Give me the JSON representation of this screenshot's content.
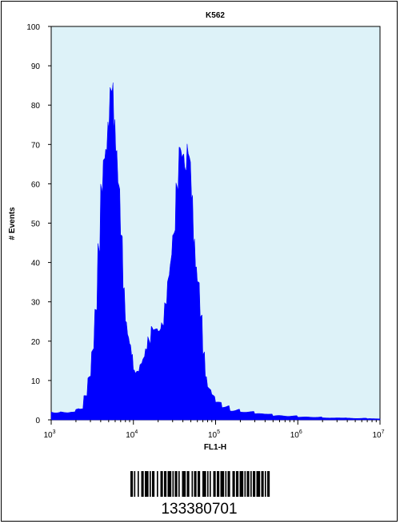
{
  "chart_data": {
    "type": "histogram",
    "title": "K562",
    "xlabel": "FL1-H",
    "ylabel": "# Events",
    "x_scale": "log",
    "xlim": [
      1000,
      10000000
    ],
    "ylim": [
      0,
      100
    ],
    "y_ticks": [
      "0",
      "10",
      "20",
      "30",
      "40",
      "50",
      "60",
      "70",
      "80",
      "90",
      "100"
    ],
    "x_tick_labels": [
      {
        "base": "10",
        "exp": "3"
      },
      {
        "base": "10",
        "exp": "4"
      },
      {
        "base": "10",
        "exp": "5"
      },
      {
        "base": "10",
        "exp": "6"
      },
      {
        "base": "10",
        "exp": "7"
      }
    ],
    "fill_color": "#0000ff",
    "plot_background": "#ddf2f8",
    "grid": false,
    "legend": "none",
    "series": [
      {
        "x": [
          1000,
          1300,
          1700,
          2000,
          2200,
          2500,
          2800,
          3100,
          3400,
          3700,
          4000,
          4300,
          4600,
          4900,
          5200,
          5500,
          5800,
          6100,
          6500,
          7000,
          7500,
          8000,
          8500,
          9000,
          9500,
          10000,
          10500,
          11000,
          12000,
          13000,
          14000,
          15000,
          16500,
          18000,
          20000,
          22000,
          24000,
          26000,
          28000,
          30000,
          33000,
          36000,
          39000,
          42000,
          45000,
          48000,
          51000,
          54000,
          57000,
          60000,
          65000,
          70000,
          75000,
          80000,
          90000,
          100000,
          120000,
          150000,
          200000,
          300000,
          500000,
          1000000,
          2000000,
          4000000,
          7000000,
          10000000
        ],
        "y": [
          2,
          2,
          2,
          3,
          3,
          6,
          10,
          17,
          28,
          42,
          55,
          66,
          76,
          82,
          85,
          84,
          78,
          70,
          56,
          42,
          32,
          26,
          22,
          19,
          17,
          14,
          13,
          12,
          13,
          15,
          18,
          20,
          22,
          23,
          25,
          27,
          30,
          35,
          41,
          48,
          56,
          62,
          64,
          67,
          72,
          66,
          58,
          50,
          42,
          34,
          24,
          16,
          11,
          8,
          6,
          4.5,
          3.5,
          2.5,
          2,
          1.5,
          1,
          0.7,
          0.5,
          0.4,
          0.3,
          0.3
        ]
      }
    ]
  },
  "barcode": {
    "number": "133380701",
    "pattern": "11010010011011101011001001101101110101101001110110010110110011101010011011011101011001101101110101101011011101101011"
  }
}
